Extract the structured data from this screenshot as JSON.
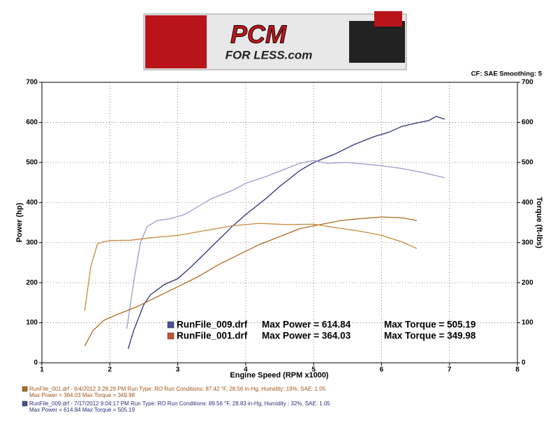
{
  "header": {
    "logo_main": "PCM",
    "logo_sub": "FOR LESS.com"
  },
  "chart_data": {
    "type": "line",
    "annotation": "CF: SAE  Smoothing: 5",
    "x_label": "Engine Speed (RPM x1000)",
    "y_label": "Power (hp)",
    "y2_label": "Torque (ft-lbs)",
    "xlim": [
      1,
      8
    ],
    "xticks": [
      1,
      2,
      3,
      4,
      5,
      6,
      7,
      8
    ],
    "ylim": [
      0,
      700
    ],
    "yticks": [
      0,
      100,
      200,
      300,
      400,
      500,
      600,
      700
    ],
    "y2lim": [
      0,
      700
    ],
    "y2ticks": [
      0,
      100,
      200,
      300,
      400,
      500,
      600,
      700
    ],
    "grid": true,
    "series": [
      {
        "color": "#2b2f7a",
        "axis": "y",
        "x": [
          2.27,
          2.35,
          2.5,
          2.6,
          2.8,
          3.0,
          3.2,
          3.5,
          3.8,
          4.0,
          4.3,
          4.5,
          4.8,
          5.0,
          5.3,
          5.6,
          5.9,
          6.1,
          6.3,
          6.5,
          6.7,
          6.8,
          6.93
        ],
        "values": [
          35,
          80,
          145,
          170,
          195,
          210,
          240,
          290,
          340,
          370,
          410,
          440,
          480,
          500,
          520,
          545,
          565,
          575,
          590,
          598,
          605,
          615,
          608
        ]
      },
      {
        "color": "#9a9ccc",
        "axis": "y2",
        "x": [
          2.25,
          2.35,
          2.45,
          2.55,
          2.7,
          2.9,
          3.1,
          3.3,
          3.5,
          3.8,
          4.0,
          4.3,
          4.6,
          4.8,
          5.0,
          5.2,
          5.5,
          5.8,
          6.0,
          6.3,
          6.6,
          6.93
        ],
        "values": [
          85,
          200,
          300,
          340,
          355,
          360,
          370,
          390,
          410,
          430,
          448,
          465,
          485,
          498,
          505,
          498,
          500,
          495,
          492,
          485,
          475,
          462
        ]
      },
      {
        "color": "#b36a1e",
        "axis": "y",
        "x": [
          1.63,
          1.75,
          1.9,
          2.1,
          2.4,
          2.7,
          3.0,
          3.3,
          3.6,
          3.9,
          4.2,
          4.5,
          4.8,
          5.1,
          5.4,
          5.7,
          6.0,
          6.3,
          6.52
        ],
        "values": [
          42,
          80,
          105,
          120,
          140,
          165,
          190,
          215,
          245,
          270,
          295,
          315,
          335,
          345,
          355,
          360,
          364,
          362,
          355
        ]
      },
      {
        "color": "#c98a3a",
        "axis": "y2",
        "x": [
          1.63,
          1.72,
          1.82,
          2.0,
          2.3,
          2.6,
          3.0,
          3.4,
          3.8,
          4.2,
          4.6,
          5.0,
          5.3,
          5.7,
          6.0,
          6.3,
          6.52
        ],
        "values": [
          130,
          240,
          298,
          305,
          306,
          312,
          318,
          330,
          342,
          348,
          345,
          346,
          338,
          328,
          318,
          302,
          285
        ]
      }
    ],
    "legend_entries": [
      {
        "color": "#4a4f9a",
        "file": "RunFile_009.drf",
        "power": "Max Power = 614.84",
        "torque": "Max Torque = 505.19"
      },
      {
        "color": "#c0562a",
        "file": "RunFile_001.drf",
        "power": "Max Power = 364.03",
        "torque": "Max Torque = 349.98"
      }
    ],
    "run_info": [
      {
        "color": "#b36a1e",
        "text_color": "#a0561a",
        "line1": "RunFile_001.drf - 6/4/2012 3:28:29 PM   Run Type: RO   Run Conditions: 87.42 °F, 28.56 in-Hg,   Humidity:   19%, SAE: 1.05",
        "line2": "Max Power = 364.03   Max Torque = 349.98"
      },
      {
        "color": "#4a4f9a",
        "text_color": "#2b2f7a",
        "line1": "RunFile_009.drf - 7/17/2012 9:04:17 PM   Run Type: RO   Run Conditions: 89.56 °F, 28.83 in-Hg,   Humidity :   32%, SAE: 1.05",
        "line2": "Max Power = 614.84   Max Torque = 505.19"
      }
    ]
  }
}
